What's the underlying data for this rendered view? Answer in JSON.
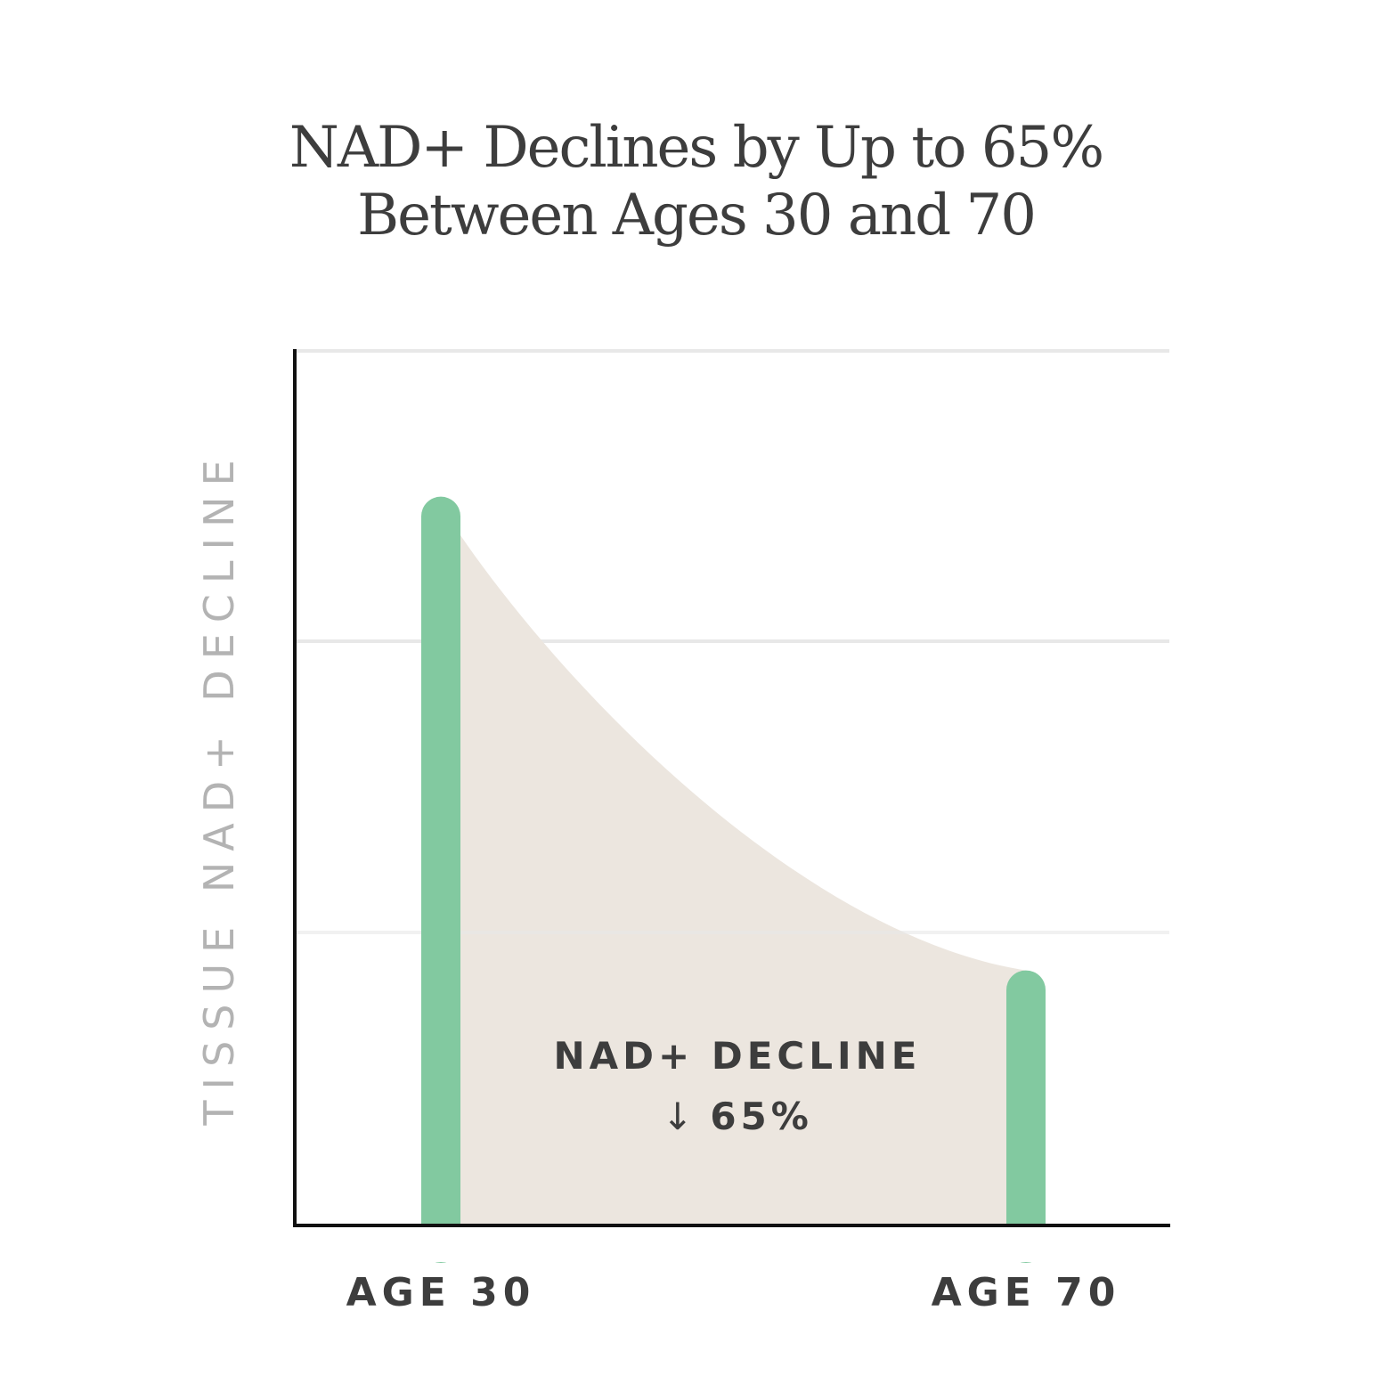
{
  "chart_data": {
    "type": "area",
    "title": "NAD+ Declines by Up to 65%",
    "subtitle": "Between Ages 30 and 70",
    "xlabel": "",
    "ylabel": "TISSUE NAD+ DECLINE",
    "categories": [
      "AGE 30",
      "AGE 70"
    ],
    "values": [
      100,
      35
    ],
    "ylim": [
      0,
      120
    ],
    "grid": true,
    "legend": "none",
    "annotation": {
      "line1": "NAD+ DECLINE",
      "arrow": "↓",
      "line2": "65%"
    },
    "colors": {
      "bar": "#82c9a0",
      "area": "#ece6df",
      "grid": "#e8e8e8",
      "axis": "#111111",
      "text": "#3d3d3d",
      "ylabel": "#b3b3b3"
    }
  }
}
